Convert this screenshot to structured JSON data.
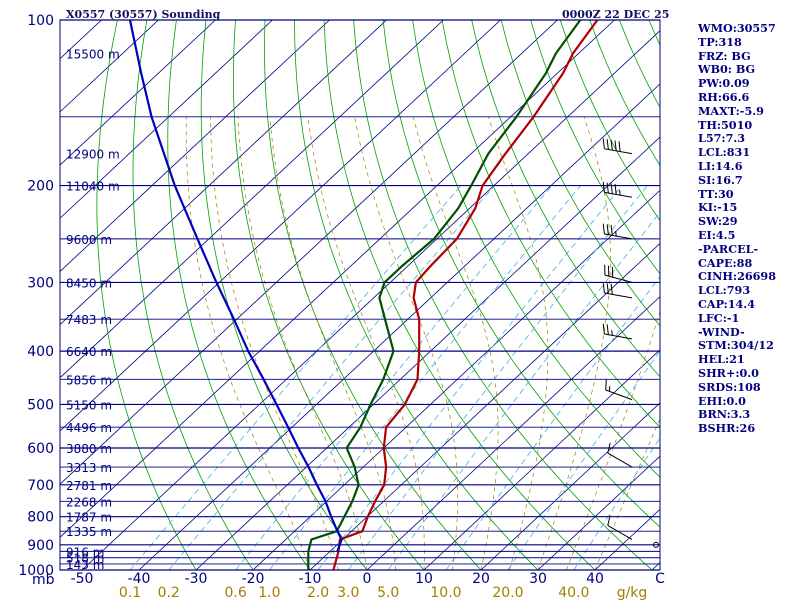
{
  "header": {
    "title": "X0557 (30557) Sounding",
    "time": "0000Z 22 DEC 25"
  },
  "indices": [
    "WMO:30557",
    "TP:318",
    "FRZ: BG",
    "WB0: BG",
    "PW:0.09",
    "RH:66.6",
    "MAXT:-5.9",
    "TH:5010",
    "L57:7.3",
    "LCL:831",
    "LI:14.6",
    "SI:16.7",
    "TT:30",
    "KI:-15",
    "SW:29",
    "EI:4.5",
    "-PARCEL-",
    "CAPE:88",
    "CINH:26698",
    "LCL:793",
    "CAP:14.4",
    "LFC:-1",
    "-WIND-",
    "STM:304/12",
    "HEL:21",
    "SHR+:0.0",
    "SRDS:108",
    "EHI:0.0",
    "BRN:3.3",
    "BSHR:26"
  ],
  "chart_data": {
    "type": "line",
    "subtype": "skew-t log-p sounding",
    "y_axis": {
      "quantity": "pressure (mb)",
      "scale": "log",
      "range": [
        1000,
        100
      ],
      "unit_label": "mb",
      "tick_labels": [
        100,
        200,
        300,
        400,
        500,
        600,
        700,
        800,
        900,
        1000
      ]
    },
    "x_axis": {
      "quantity": "temperature (°C), skewed",
      "tick_labels": [
        "-50",
        "-40",
        "-30",
        "-20",
        "-10",
        "0",
        "10",
        "20",
        "30",
        "40",
        "C"
      ],
      "tick_values": [
        -50,
        -40,
        -30,
        -20,
        -10,
        0,
        10,
        20,
        30,
        40
      ]
    },
    "mixing_ratio_axis": {
      "unit": "g/kg",
      "labels": [
        "0.1",
        "0.2",
        "0.6",
        "1.0",
        "2.0",
        "3.0",
        "5.0",
        "10.0",
        "20.0",
        "40.0"
      ],
      "values": [
        0.1,
        0.2,
        0.6,
        1.0,
        2.0,
        3.0,
        5.0,
        10.0,
        20.0,
        40.0
      ]
    },
    "height_labels": [
      {
        "p": 115,
        "label": "15500 m"
      },
      {
        "p": 175,
        "label": "12900 m"
      },
      {
        "p": 200,
        "label": "11040 m"
      },
      {
        "p": 250,
        "label": "9600 m"
      },
      {
        "p": 300,
        "label": "8450 m"
      },
      {
        "p": 350,
        "label": "7483 m"
      },
      {
        "p": 400,
        "label": "6640 m"
      },
      {
        "p": 450,
        "label": "5856 m"
      },
      {
        "p": 500,
        "label": "5150 m"
      },
      {
        "p": 550,
        "label": "4496 m"
      },
      {
        "p": 600,
        "label": "3880 m"
      },
      {
        "p": 650,
        "label": "3313 m"
      },
      {
        "p": 700,
        "label": "2781 m"
      },
      {
        "p": 750,
        "label": "2268 m"
      },
      {
        "p": 800,
        "label": "1787 m"
      },
      {
        "p": 850,
        "label": "1335 m"
      },
      {
        "p": 925,
        "label": "916 m"
      },
      {
        "p": 950,
        "label": "518 m"
      },
      {
        "p": 975,
        "label": "143 m"
      }
    ],
    "series": [
      {
        "name": "",
        "color": "#b00000",
        "p": [
          1000,
          925,
          880,
          850,
          800,
          750,
          700,
          650,
          600,
          550,
          500,
          450,
          400,
          350,
          320,
          300,
          280,
          250,
          220,
          200,
          175,
          150,
          125,
          115,
          100
        ],
        "t": [
          -5.9,
          -8.5,
          -10.5,
          -8.1,
          -9.9,
          -11.5,
          -13.0,
          -16.0,
          -20.0,
          -23.5,
          -24.5,
          -27.0,
          -32.0,
          -38.0,
          -43.0,
          -45.5,
          -46.0,
          -46.5,
          -49.0,
          -52.0,
          -54.0,
          -56.0,
          -59.0,
          -61.0,
          -63.0
        ]
      },
      {
        "name": "",
        "color": "#005000",
        "p": [
          1000,
          925,
          880,
          850,
          800,
          750,
          700,
          650,
          600,
          550,
          500,
          450,
          400,
          350,
          320,
          300,
          280,
          250,
          220,
          200,
          175,
          150,
          125,
          115,
          100
        ],
        "t": [
          -10.3,
          -13.8,
          -15.5,
          -12.6,
          -14.0,
          -15.5,
          -17.5,
          -21.5,
          -26.5,
          -28.0,
          -30.5,
          -33.0,
          -36.5,
          -44.0,
          -49.0,
          -51.0,
          -51.0,
          -50.5,
          -52.0,
          -54.0,
          -57.0,
          -59.0,
          -62.0,
          -64.0,
          -66.0
        ]
      },
      {
        "name": "",
        "color": "#0000c0",
        "p": [
          925,
          880,
          850,
          800,
          750,
          700,
          650,
          600,
          550,
          500,
          450,
          400,
          350,
          300,
          250,
          200,
          150,
          125,
          100
        ],
        "t": [
          -8.7,
          -10.2,
          -12.5,
          -16.3,
          -20.2,
          -24.8,
          -29.6,
          -35.0,
          -40.7,
          -47.0,
          -54.0,
          -62.0,
          -70.5,
          -80.5,
          -92.0,
          -106.0,
          -123.0,
          -133.0,
          -145.0
        ]
      }
    ],
    "wind_barbs": [
      {
        "p": 175,
        "dir": 280,
        "kt": 50
      },
      {
        "p": 210,
        "dir": 280,
        "kt": 45
      },
      {
        "p": 250,
        "dir": 280,
        "kt": 35
      },
      {
        "p": 300,
        "dir": 285,
        "kt": 30
      },
      {
        "p": 320,
        "dir": 280,
        "kt": 30
      },
      {
        "p": 380,
        "dir": 280,
        "kt": 25
      },
      {
        "p": 490,
        "dir": 290,
        "kt": 15
      },
      {
        "p": 650,
        "dir": 300,
        "kt": 10
      },
      {
        "p": 880,
        "dir": 300,
        "kt": 10
      },
      {
        "p": 900,
        "dir": 300,
        "kt": 0
      }
    ],
    "grid": true,
    "legend": "none"
  }
}
